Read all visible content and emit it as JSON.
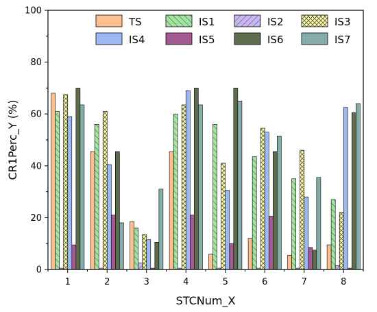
{
  "chart_data": {
    "type": "bar",
    "xlabel": "STCNum_X",
    "ylabel": "CR1Perc_Y (%)",
    "ylim": [
      0,
      100
    ],
    "yticks": [
      "0",
      "20",
      "40",
      "60",
      "80",
      "100"
    ],
    "categories": [
      "1",
      "2",
      "3",
      "4",
      "5",
      "6",
      "7",
      "8"
    ],
    "grid": false,
    "legend_position": "top-right",
    "series": [
      {
        "name": "TS",
        "color": "#FFBF8F",
        "pattern": "solid",
        "values": [
          68,
          45.5,
          18.5,
          45.5,
          6,
          12,
          5.5,
          9.5
        ]
      },
      {
        "name": "IS1",
        "color": "#A6E2A6",
        "pattern": "diag-right",
        "values": [
          61,
          56,
          16,
          60,
          56,
          43.5,
          35,
          27
        ]
      },
      {
        "name": "IS2",
        "color": "#C9B8F0",
        "pattern": "diag-left",
        "values": [
          0.5,
          0.5,
          2.5,
          0.5,
          0.5,
          0.5,
          0.5,
          1.5
        ]
      },
      {
        "name": "IS3",
        "color": "#FFFFA0",
        "pattern": "cross",
        "values": [
          67.5,
          61,
          13.5,
          63.5,
          41,
          54.5,
          46,
          22
        ]
      },
      {
        "name": "IS4",
        "color": "#9EB8F4",
        "pattern": "solid",
        "values": [
          59,
          40.5,
          11.5,
          69,
          30.5,
          53,
          28,
          62.5
        ]
      },
      {
        "name": "IS5",
        "color": "#A45A93",
        "pattern": "solid",
        "values": [
          9.5,
          21,
          0.5,
          21,
          10,
          20.5,
          8.5,
          0.5
        ]
      },
      {
        "name": "IS6",
        "color": "#5E6B4C",
        "pattern": "solid",
        "values": [
          70,
          45.5,
          10.5,
          70,
          70,
          45.5,
          7.5,
          60.5
        ]
      },
      {
        "name": "IS7",
        "color": "#85AEAA",
        "pattern": "solid",
        "values": [
          63.5,
          18,
          31,
          63.5,
          65,
          51.5,
          35.5,
          64
        ]
      }
    ]
  }
}
